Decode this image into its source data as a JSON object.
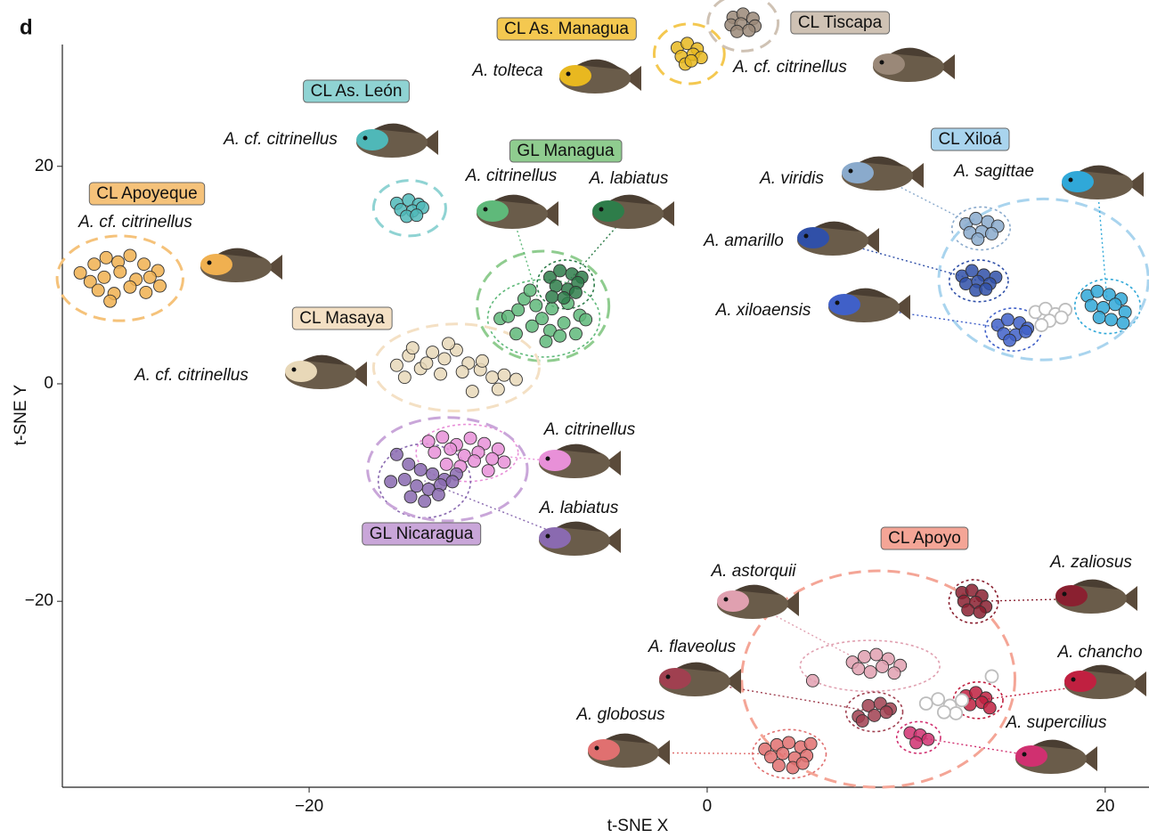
{
  "chart_data": {
    "type": "scatter",
    "panel": "d",
    "xlabel": "t-SNE X",
    "ylabel": "t-SNE Y",
    "xlim": [
      -32.4,
      22.2
    ],
    "ylim": [
      -37.1,
      31.2
    ],
    "xticks": [
      {
        "value": -20,
        "label": "−20"
      },
      0,
      20
    ],
    "yticks": [
      {
        "value": -20,
        "label": "−20"
      },
      0,
      20
    ],
    "groups": [
      {
        "label": "CL Apoyeque",
        "label_color": "#f5c27a",
        "series": [
          {
            "name": "A. cf. citrinellus",
            "color": "#f0b050",
            "x": [
              -31.5,
              -30.8,
              -30.2,
              -29.6,
              -29.0,
              -28.3,
              -27.6,
              -31.0,
              -30.3,
              -29.5,
              -28.7,
              -28.0,
              -30.6,
              -29.8,
              -29.0,
              -28.2,
              -27.5,
              -30.0
            ],
            "values": [
              10.2,
              11.0,
              11.6,
              11.2,
              11.8,
              11.0,
              10.4,
              9.4,
              9.8,
              10.3,
              9.6,
              9.8,
              8.6,
              8.3,
              8.9,
              8.4,
              9.0,
              7.6
            ]
          }
        ]
      },
      {
        "label": "CL As. León",
        "label_color": "#8fd3d3",
        "series": [
          {
            "name": "A. cf. citrinellus",
            "color": "#4fb8b8",
            "x": [
              -15.6,
              -15.0,
              -14.5,
              -15.4,
              -14.8,
              -14.3,
              -15.1,
              -14.6
            ],
            "values": [
              16.6,
              16.9,
              16.5,
              16.0,
              15.9,
              16.2,
              15.4,
              15.5
            ]
          }
        ]
      },
      {
        "label": "CL As. Managua",
        "label_color": "#f4c850",
        "series": [
          {
            "name": "A. tolteca",
            "color": "#e8b820",
            "x": [
              -1.5,
              -1.0,
              -0.5,
              -1.3,
              -0.7,
              -0.3,
              -1.1,
              -0.8
            ],
            "values": [
              30.9,
              31.3,
              30.8,
              30.1,
              30.3,
              30.0,
              29.4,
              29.7
            ]
          }
        ]
      },
      {
        "label": "CL Tiscapa",
        "label_color": "#cfc2b4",
        "series": [
          {
            "name": "A. cf. citrinellus",
            "color": "#9a8878",
            "x": [
              1.3,
              1.8,
              2.3,
              1.2,
              1.7,
              2.4,
              1.5,
              2.1
            ],
            "values": [
              33.7,
              34.0,
              33.6,
              33.0,
              33.1,
              32.9,
              32.4,
              32.5
            ]
          }
        ]
      },
      {
        "label": "GL Managua",
        "label_color": "#8fcc8f",
        "series": [
          {
            "name": "A. citrinellus",
            "color": "#5fb97a",
            "x": [
              -10.4,
              -10.0,
              -9.5,
              -8.8,
              -8.3,
              -7.9,
              -7.2,
              -6.6,
              -9.2,
              -8.6,
              -7.8,
              -7.0,
              -6.4,
              -9.6,
              -8.1,
              -7.4,
              -8.9,
              -6.1
            ],
            "values": [
              6.0,
              6.2,
              6.8,
              5.3,
              6.0,
              4.9,
              5.6,
              4.6,
              7.8,
              7.2,
              6.9,
              7.4,
              6.3,
              4.6,
              3.9,
              4.4,
              8.6,
              5.9
            ]
          },
          {
            "name": "A. labiatus",
            "color": "#2e7d4a",
            "x": [
              -7.9,
              -7.4,
              -6.8,
              -6.3,
              -7.6,
              -7.0,
              -6.5,
              -7.8,
              -7.2,
              -6.6
            ],
            "values": [
              9.8,
              10.4,
              10.1,
              9.8,
              9.0,
              8.7,
              9.3,
              8.0,
              7.9,
              8.4
            ]
          }
        ]
      },
      {
        "label": "CL Masaya",
        "label_color": "#f4e0c4",
        "series": [
          {
            "name": "A. cf. citrinellus",
            "color": "#e8d8b8",
            "x": [
              -15.6,
              -15.0,
              -14.4,
              -13.8,
              -13.2,
              -12.6,
              -12.0,
              -11.4,
              -10.8,
              -10.2,
              -9.6,
              -15.2,
              -14.1,
              -13.4,
              -12.3,
              -11.3,
              -10.5,
              -14.8,
              -13.0,
              -11.8
            ],
            "values": [
              1.7,
              2.6,
              1.4,
              2.9,
              2.3,
              3.1,
              1.9,
              1.3,
              0.6,
              0.8,
              0.4,
              0.6,
              1.9,
              0.9,
              1.1,
              2.1,
              -0.5,
              3.3,
              3.7,
              -0.7
            ]
          }
        ]
      },
      {
        "label": "GL Nicaragua",
        "label_color": "#c9a6d9",
        "series": [
          {
            "name": "A. citrinellus",
            "color": "#e890d8",
            "x": [
              -14.0,
              -13.3,
              -12.6,
              -11.9,
              -11.2,
              -10.5,
              -13.7,
              -12.9,
              -12.2,
              -11.5,
              -10.8,
              -10.2,
              -13.1,
              -12.4,
              -11.7,
              -11.0
            ],
            "values": [
              -5.3,
              -4.9,
              -5.6,
              -5.0,
              -5.5,
              -6.0,
              -6.3,
              -6.0,
              -6.6,
              -6.3,
              -6.9,
              -7.2,
              -7.4,
              -7.6,
              -7.1,
              -8.0
            ]
          },
          {
            "name": "A. labiatus",
            "color": "#8a6ab0",
            "x": [
              -15.9,
              -15.0,
              -14.4,
              -13.8,
              -13.2,
              -12.6,
              -15.2,
              -14.6,
              -14.0,
              -13.4,
              -12.8,
              -14.9,
              -14.2,
              -13.5,
              -15.6
            ],
            "values": [
              -9.0,
              -7.4,
              -7.9,
              -8.3,
              -8.8,
              -8.3,
              -8.8,
              -9.4,
              -9.7,
              -9.3,
              -9.0,
              -10.4,
              -10.8,
              -10.2,
              -6.5
            ]
          }
        ]
      },
      {
        "label": "CL Xiloá",
        "label_color": "#a9d4ee",
        "series": [
          {
            "name": "A. viridis",
            "color": "#8aaacc",
            "x": [
              13.0,
              13.5,
              14.1,
              14.6,
              13.2,
              13.8,
              14.3,
              13.6
            ],
            "values": [
              14.7,
              15.2,
              14.9,
              14.5,
              13.9,
              14.0,
              13.8,
              13.3
            ]
          },
          {
            "name": "A. amarillo",
            "color": "#3050a8",
            "x": [
              12.8,
              13.3,
              13.9,
              14.5,
              13.0,
              13.6,
              14.2,
              13.5,
              14.0
            ],
            "values": [
              9.9,
              10.4,
              10.0,
              9.8,
              9.2,
              9.4,
              9.2,
              8.6,
              8.7
            ]
          },
          {
            "name": "A. xiloaensis",
            "color": "#4060c8",
            "x": [
              14.6,
              15.1,
              15.7,
              16.1,
              14.9,
              15.5,
              16.0,
              15.2
            ],
            "values": [
              5.4,
              5.9,
              5.6,
              5.1,
              4.6,
              4.5,
              4.8,
              4.0
            ]
          },
          {
            "color": "#bdbdbd",
            "marker": "open",
            "x": [
              16.5,
              17.0,
              17.5,
              18.0,
              17.2,
              17.8,
              16.8
            ],
            "values": [
              6.6,
              6.9,
              6.4,
              6.8,
              5.8,
              6.1,
              5.4
            ]
          },
          {
            "name": "A. sagittae",
            "color": "#30a8d8",
            "x": [
              19.1,
              19.6,
              20.2,
              20.8,
              19.3,
              19.9,
              20.5,
              21.0,
              19.7,
              20.3,
              20.9
            ],
            "values": [
              8.1,
              8.5,
              8.2,
              7.8,
              7.2,
              7.0,
              7.3,
              6.6,
              6.1,
              5.9,
              5.6
            ]
          }
        ]
      },
      {
        "label": "CL Apoyo",
        "label_color": "#f4a596",
        "series": [
          {
            "name": "A. zaliosus",
            "color": "#8a2030",
            "x": [
              12.8,
              13.3,
              13.8,
              12.9,
              13.5,
              14.0,
              13.1,
              13.7
            ],
            "values": [
              -19.2,
              -19.0,
              -19.5,
              -20.0,
              -20.1,
              -20.5,
              -20.8,
              -21.0
            ]
          },
          {
            "name": "A. astorquii",
            "color": "#e0a0b0",
            "x": [
              7.3,
              7.9,
              8.5,
              9.1,
              9.7,
              7.6,
              8.2,
              8.8,
              9.4,
              5.3
            ],
            "values": [
              -25.6,
              -25.1,
              -24.9,
              -25.3,
              -25.9,
              -26.2,
              -26.5,
              -26.0,
              -26.6,
              -27.3
            ]
          },
          {
            "name": "A. flaveolus",
            "color": "#a04050",
            "x": [
              7.6,
              8.1,
              8.7,
              9.2,
              7.8,
              8.4,
              9.0
            ],
            "values": [
              -30.6,
              -29.6,
              -29.4,
              -29.9,
              -31.0,
              -30.5,
              -30.2
            ]
          },
          {
            "name": "A. chancho",
            "color": "#c02040",
            "x": [
              13.0,
              13.5,
              14.0,
              13.2,
              13.8,
              14.2
            ],
            "values": [
              -28.7,
              -28.4,
              -28.9,
              -29.5,
              -29.3,
              -29.8
            ]
          },
          {
            "name": "A. supercilius",
            "color": "#d03070",
            "x": [
              10.2,
              10.7,
              11.1,
              10.5
            ],
            "values": [
              -32.1,
              -32.3,
              -32.7,
              -33.0
            ]
          },
          {
            "name": "A. globosus",
            "color": "#e07070",
            "x": [
              2.9,
              3.5,
              4.1,
              4.7,
              5.2,
              3.2,
              3.8,
              4.4,
              5.0,
              3.6,
              4.3,
              4.8
            ],
            "values": [
              -33.6,
              -33.2,
              -33.0,
              -33.4,
              -33.1,
              -34.3,
              -34.0,
              -34.4,
              -34.2,
              -35.1,
              -35.3,
              -34.9
            ]
          },
          {
            "color": "#bdbdbd",
            "marker": "open",
            "x": [
              11.0,
              11.6,
              12.2,
              12.5,
              11.9,
              14.3,
              12.8
            ],
            "values": [
              -29.4,
              -29.0,
              -29.6,
              -30.3,
              -30.2,
              -26.9,
              -29.1
            ]
          }
        ]
      }
    ]
  }
}
